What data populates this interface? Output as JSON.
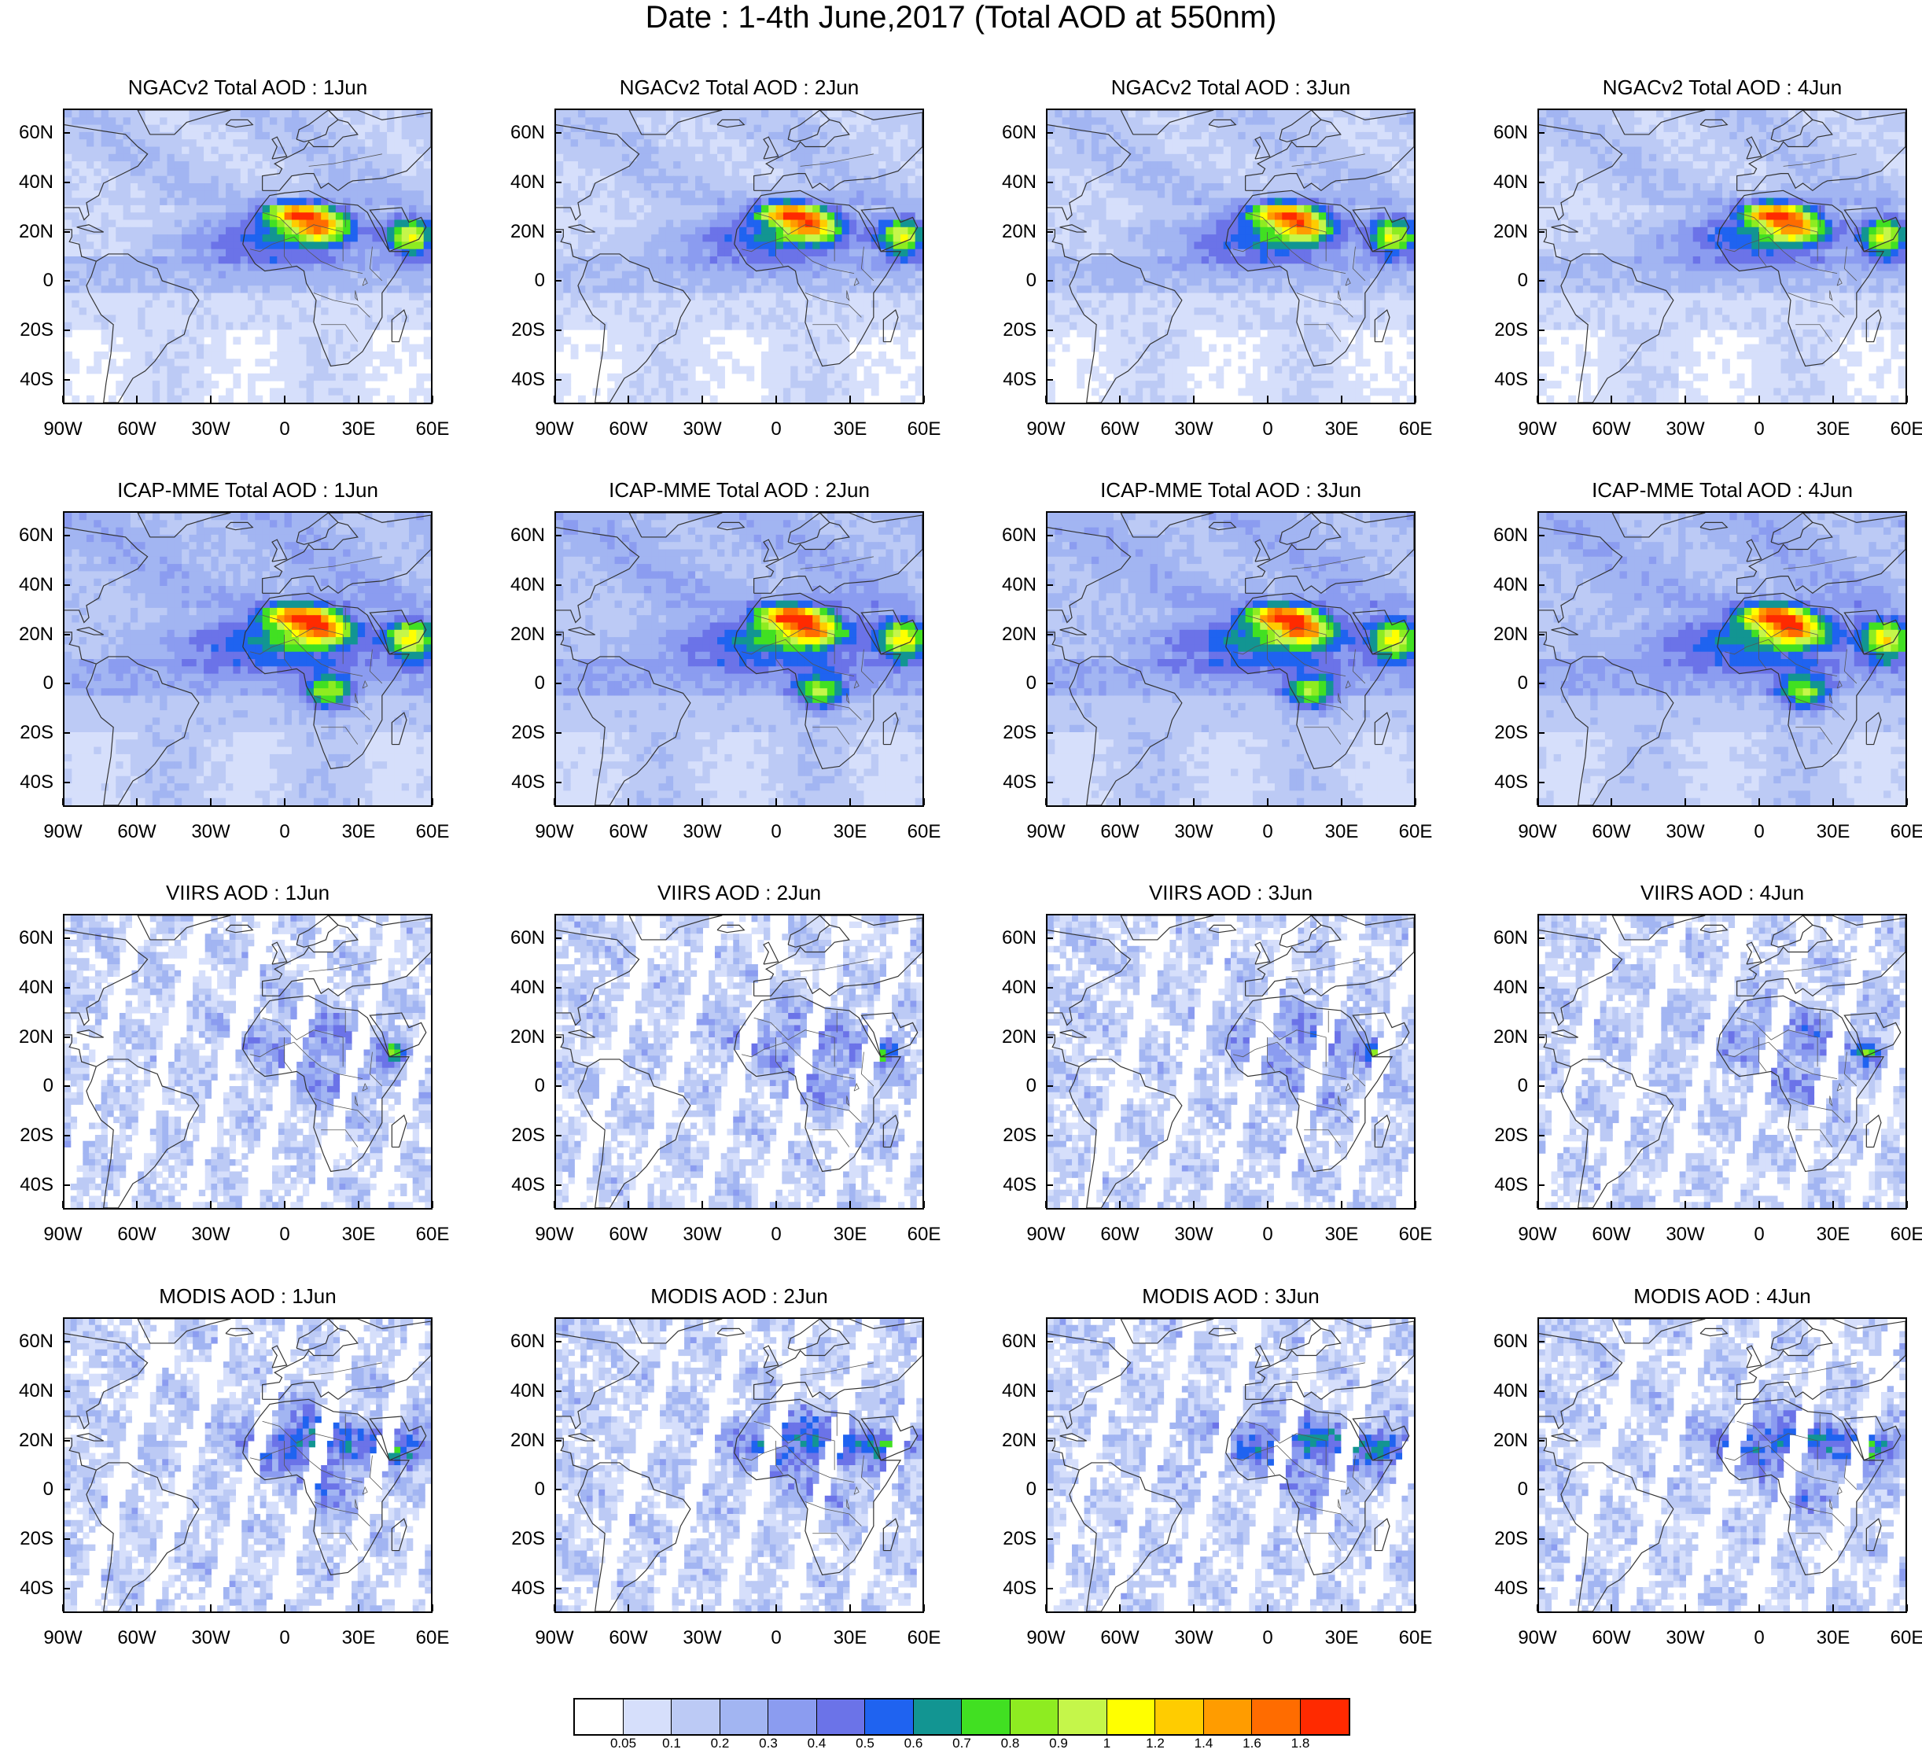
{
  "title": "Date : 1-4th June,2017 (Total AOD at 550nm)",
  "panels": [
    {
      "title": "NGACv2 Total AOD : 1Jun",
      "pattern": "ngac",
      "seed": 1
    },
    {
      "title": "NGACv2 Total AOD : 2Jun",
      "pattern": "ngac",
      "seed": 2
    },
    {
      "title": "NGACv2 Total AOD : 3Jun",
      "pattern": "ngac",
      "seed": 3
    },
    {
      "title": "NGACv2 Total AOD : 4Jun",
      "pattern": "ngac",
      "seed": 4
    },
    {
      "title": "ICAP-MME Total AOD : 1Jun",
      "pattern": "icap",
      "seed": 5
    },
    {
      "title": "ICAP-MME Total AOD : 2Jun",
      "pattern": "icap",
      "seed": 6
    },
    {
      "title": "ICAP-MME Total AOD : 3Jun",
      "pattern": "icap",
      "seed": 7
    },
    {
      "title": "ICAP-MME Total AOD : 4Jun",
      "pattern": "icap",
      "seed": 8
    },
    {
      "title": "VIIRS AOD : 1Jun",
      "pattern": "viirs",
      "seed": 9
    },
    {
      "title": "VIIRS AOD : 2Jun",
      "pattern": "viirs",
      "seed": 10
    },
    {
      "title": "VIIRS AOD : 3Jun",
      "pattern": "viirs",
      "seed": 11
    },
    {
      "title": "VIIRS AOD : 4Jun",
      "pattern": "viirs",
      "seed": 12
    },
    {
      "title": "MODIS AOD : 1Jun",
      "pattern": "modis",
      "seed": 13
    },
    {
      "title": "MODIS AOD : 2Jun",
      "pattern": "modis",
      "seed": 14
    },
    {
      "title": "MODIS AOD : 3Jun",
      "pattern": "modis",
      "seed": 15
    },
    {
      "title": "MODIS AOD : 4Jun",
      "pattern": "modis",
      "seed": 16
    }
  ],
  "axes": {
    "lat_labels": [
      "60N",
      "40N",
      "20N",
      "0",
      "20S",
      "40S"
    ],
    "lat_values": [
      60,
      40,
      20,
      0,
      -20,
      -40
    ],
    "lon_labels": [
      "90W",
      "60W",
      "30W",
      "0",
      "30E",
      "60E"
    ],
    "lon_values": [
      -90,
      -60,
      -30,
      0,
      30,
      60
    ],
    "lat_range": [
      -50,
      70
    ],
    "lon_range": [
      -90,
      60
    ]
  },
  "colorbar": {
    "colors": [
      "#ffffff",
      "#d6dffb",
      "#bccaf5",
      "#a2b5f2",
      "#8b9cf0",
      "#6b73e8",
      "#1f63f0",
      "#129592",
      "#41e022",
      "#8eec21",
      "#c5f64a",
      "#ffff00",
      "#ffcc00",
      "#ff9c00",
      "#ff6c00",
      "#ff2a00"
    ],
    "labels": [
      "0.05",
      "0.1",
      "0.2",
      "0.3",
      "0.4",
      "0.5",
      "0.6",
      "0.7",
      "0.8",
      "0.9",
      "1",
      "1.2",
      "1.4",
      "1.6",
      "1.8"
    ]
  }
}
